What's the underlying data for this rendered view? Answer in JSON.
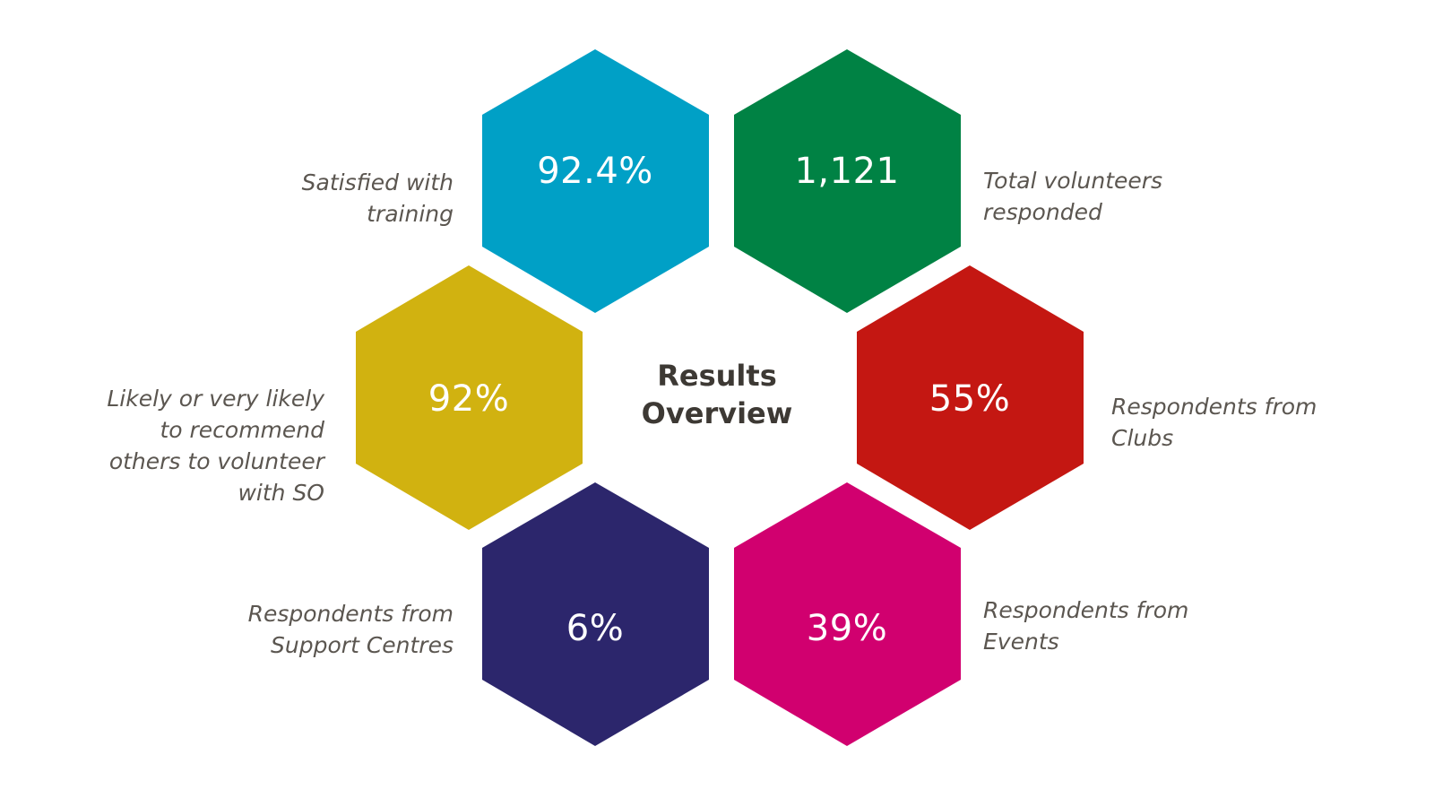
{
  "center": {
    "title_line1": "Results",
    "title_line2": "Overview"
  },
  "hexagons": [
    {
      "id": "training",
      "value": "92.4%",
      "color": "#00a0c6",
      "label_lines": [
        "Satisfied with",
        "training"
      ]
    },
    {
      "id": "total",
      "value": "1,121",
      "color": "#008244",
      "label_lines": [
        "Total volunteers",
        "responded"
      ]
    },
    {
      "id": "clubs",
      "value": "55%",
      "color": "#c41712",
      "label_lines": [
        "Respondents from",
        "Clubs"
      ]
    },
    {
      "id": "events",
      "value": "39%",
      "color": "#d1006f",
      "label_lines": [
        "Respondents from",
        "Events"
      ]
    },
    {
      "id": "support",
      "value": "6%",
      "color": "#2c266c",
      "label_lines": [
        "Respondents from",
        "Support Centres"
      ]
    },
    {
      "id": "recommend",
      "value": "92%",
      "color": "#d1b210",
      "label_lines": [
        "Likely or very likely",
        "to recommend",
        "others to volunteer",
        "with SO"
      ]
    }
  ]
}
